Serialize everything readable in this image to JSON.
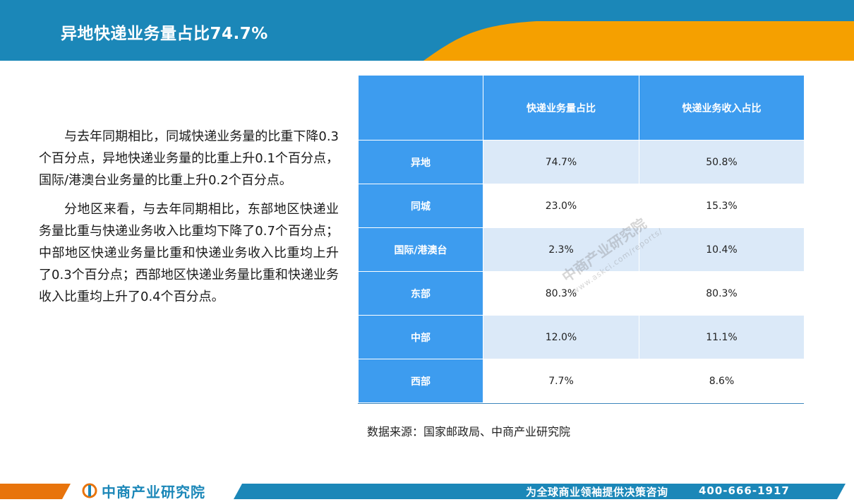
{
  "header": {
    "title": "异地快递业务量占比74.7%"
  },
  "body": {
    "paragraphs": [
      "与去年同期相比，同城快递业务量的比重下降0.3个百分点，异地快递业务量的比重上升0.1个百分点，国际/港澳台业务量的比重上升0.2个百分点。",
      "分地区来看，与去年同期相比，东部地区快递业务量比重与快递业务收入比重均下降了0.7个百分点；中部地区快递业务量比重和快递业务收入比重均上升了0.3个百分点；西部地区快递业务量比重和快递业务收入比重均上升了0.4个百分点。"
    ]
  },
  "table": {
    "columns": [
      "",
      "快递业务量占比",
      "快递业务收入占比"
    ],
    "rows": [
      {
        "label": "异地",
        "volume": "74.7%",
        "revenue": "50.8%"
      },
      {
        "label": "同城",
        "volume": "23.0%",
        "revenue": "15.3%"
      },
      {
        "label": "国际/港澳台",
        "volume": "2.3%",
        "revenue": "10.4%"
      },
      {
        "label": "东部",
        "volume": "80.3%",
        "revenue": "80.3%"
      },
      {
        "label": "中部",
        "volume": "12.0%",
        "revenue": "11.1%"
      },
      {
        "label": "西部",
        "volume": "7.7%",
        "revenue": "8.6%"
      }
    ]
  },
  "source": "数据来源：国家邮政局、中商产业研究院",
  "watermark": {
    "name": "中商产业研究院",
    "url": "www.askci.com/reports/"
  },
  "footer": {
    "logo_text": "中商产业研究院",
    "slogan": "为全球商业领袖提供决策咨询",
    "phone": "400-666-1917"
  },
  "colors": {
    "header_blue": "#1b87b8",
    "accent_orange": "#f5a000",
    "table_header_blue": "#3d9cef",
    "table_light_row": "#dbe9f8"
  }
}
